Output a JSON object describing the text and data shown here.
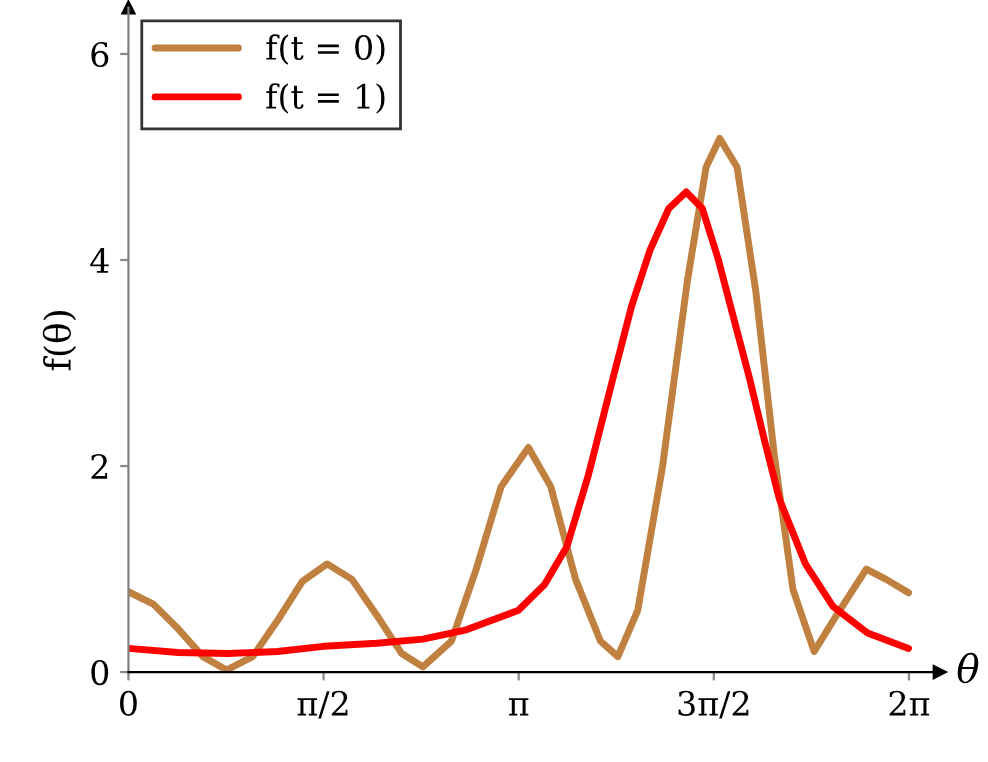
{
  "chart_data": {
    "type": "line",
    "xlabel": "θ",
    "ylabel": "f(θ)",
    "xlim": [
      0,
      6.53
    ],
    "ylim": [
      0,
      6.45
    ],
    "xticks": [
      0,
      {
        "value": 1.5708,
        "label": "π/2"
      },
      {
        "value": 3.1416,
        "label": "π"
      },
      {
        "value": 4.7124,
        "label": "3π/2"
      },
      {
        "value": 6.2832,
        "label": "2π"
      }
    ],
    "yticks": [
      0,
      2,
      4,
      6
    ],
    "grid": false,
    "legend": "top left",
    "marker": "none",
    "line_style": "solid",
    "series": [
      {
        "name": "f(t = 0)",
        "color": "#c0803f",
        "x": [
          0,
          0.2,
          0.4,
          0.6,
          0.79,
          1.0,
          1.2,
          1.4,
          1.6,
          1.8,
          2.0,
          2.2,
          2.37,
          2.6,
          2.8,
          3.0,
          3.22,
          3.4,
          3.6,
          3.8,
          3.94,
          4.1,
          4.3,
          4.5,
          4.65,
          4.76,
          4.9,
          5.05,
          5.2,
          5.35,
          5.52,
          5.7,
          5.94,
          6.1,
          6.28
        ],
        "values": [
          0.78,
          0.66,
          0.42,
          0.15,
          0.02,
          0.15,
          0.5,
          0.88,
          1.05,
          0.9,
          0.55,
          0.18,
          0.05,
          0.3,
          1.0,
          1.8,
          2.18,
          1.8,
          0.9,
          0.3,
          0.15,
          0.6,
          2.0,
          3.8,
          4.9,
          5.18,
          4.9,
          3.7,
          2.1,
          0.8,
          0.2,
          0.55,
          1.0,
          0.9,
          0.77
        ]
      },
      {
        "name": "f(t = 1)",
        "color": "#ff0000",
        "x": [
          0,
          0.4,
          0.8,
          1.2,
          1.57,
          2.0,
          2.37,
          2.72,
          3.14,
          3.35,
          3.53,
          3.7,
          3.9,
          4.05,
          4.2,
          4.35,
          4.49,
          4.62,
          4.75,
          4.88,
          5.0,
          5.12,
          5.24,
          5.45,
          5.67,
          5.95,
          6.28
        ],
        "values": [
          0.23,
          0.19,
          0.18,
          0.2,
          0.25,
          0.28,
          0.32,
          0.41,
          0.6,
          0.85,
          1.22,
          1.9,
          2.85,
          3.55,
          4.1,
          4.5,
          4.66,
          4.5,
          4.0,
          3.4,
          2.85,
          2.25,
          1.68,
          1.05,
          0.64,
          0.38,
          0.23
        ]
      }
    ]
  }
}
